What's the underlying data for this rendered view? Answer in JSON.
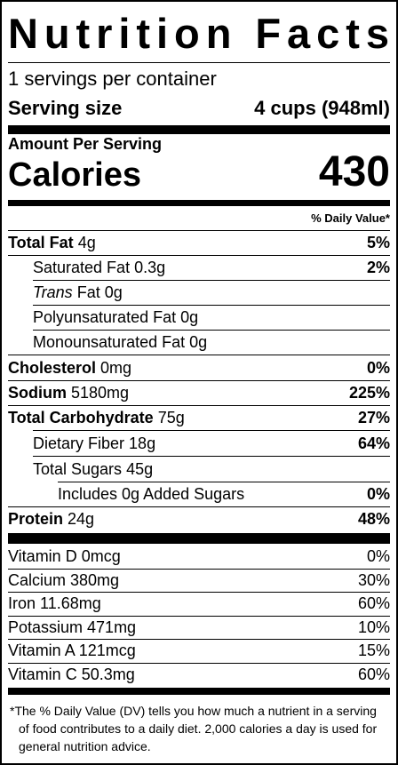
{
  "title": "Nutrition Facts",
  "servings": "1 servings per container",
  "serving_size": {
    "label": "Serving size",
    "value": "4 cups (948ml)"
  },
  "amount_per_serving": "Amount Per Serving",
  "calories": {
    "label": "Calories",
    "value": "430"
  },
  "dv_header": "% Daily Value*",
  "nutrients": [
    {
      "name": "Total Fat",
      "amount": "4g",
      "dv": "5%"
    },
    {
      "name": "Saturated Fat",
      "amount": "0.3g",
      "dv": "2%"
    },
    {
      "name": "Trans",
      "suffix": "Fat",
      "amount": "0g",
      "dv": ""
    },
    {
      "name": "Polyunsaturated Fat",
      "amount": "0g",
      "dv": ""
    },
    {
      "name": "Monounsaturated Fat",
      "amount": "0g",
      "dv": ""
    },
    {
      "name": "Cholesterol",
      "amount": "0mg",
      "dv": "0%"
    },
    {
      "name": "Sodium",
      "amount": "5180mg",
      "dv": "225%"
    },
    {
      "name": "Total Carbohydrate",
      "amount": "75g",
      "dv": "27%"
    },
    {
      "name": "Dietary Fiber",
      "amount": "18g",
      "dv": "64%"
    },
    {
      "name": "Total Sugars",
      "amount": "45g",
      "dv": ""
    },
    {
      "name": "Includes 0g Added Sugars",
      "amount": "",
      "dv": "0%"
    },
    {
      "name": "Protein",
      "amount": "24g",
      "dv": "48%"
    }
  ],
  "vitamins": [
    {
      "text": "Vitamin D 0mcg",
      "dv": "0%"
    },
    {
      "text": "Calcium 380mg",
      "dv": "30%"
    },
    {
      "text": "Iron 11.68mg",
      "dv": "60%"
    },
    {
      "text": "Potassium 471mg",
      "dv": "10%"
    },
    {
      "text": "Vitamin A 121mcg",
      "dv": "15%"
    },
    {
      "text": "Vitamin C 50.3mg",
      "dv": "60%"
    }
  ],
  "footnote": "*The % Daily Value (DV) tells you how much a nutrient in a serving of food contributes to a daily diet. 2,000 calories a day is used for general nutrition advice."
}
